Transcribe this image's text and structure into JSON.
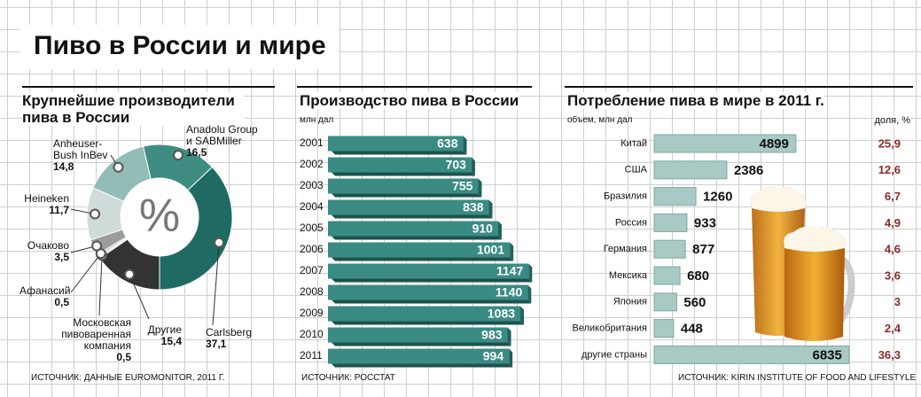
{
  "title": "Пиво в России и мире",
  "chart_data": [
    {
      "type": "donut",
      "title": "Крупнейшие производители пива в России",
      "center_label": "%",
      "categories": [
        "Другие",
        "Московская\nпивоваренная компания",
        "Афанасий",
        "Очаково",
        "Heineken",
        "Anheuser-\nBush InBev",
        "Anadolu Group\nи SABMiller",
        "Carlsberg"
      ],
      "values": [
        15.4,
        0.5,
        0.5,
        3.5,
        11.7,
        14.8,
        16.5,
        37.1
      ],
      "value_labels": [
        "15,4",
        "0,5",
        "0,5",
        "3,5",
        "11,7",
        "14,8",
        "16,5",
        "37,1"
      ],
      "colors": [
        "#333333",
        "#d9d9d9",
        "#bfbfbf",
        "#9c9c9c",
        "#cfdcda",
        "#93bcb7",
        "#3f8c83",
        "#1f6b63"
      ],
      "source": "ИСТОЧНИК: ДАННЫЕ EUROMONITOR, 2011 Г."
    },
    {
      "type": "bar",
      "title": "Производство пива в России",
      "unit": "млн дал",
      "categories": [
        "2001",
        "2002",
        "2003",
        "2004",
        "2005",
        "2006",
        "2007",
        "2008",
        "2009",
        "2010",
        "2011"
      ],
      "values": [
        638,
        703,
        755,
        838,
        910,
        1001,
        1147,
        1140,
        1083,
        983,
        994
      ],
      "color": "#3a8b84",
      "source": "ИСТОЧНИК: РОССТАТ"
    },
    {
      "type": "bar",
      "title": "Потребление пива в мире в 2011 г.",
      "unit": "объем, млн дал",
      "share_unit": "доля, %",
      "categories": [
        "Китай",
        "США",
        "Бразилия",
        "Россия",
        "Германия",
        "Мексика",
        "Япония",
        "Великобритания",
        "другие страны"
      ],
      "values": [
        4899,
        2386,
        1260,
        933,
        877,
        680,
        560,
        448,
        6835
      ],
      "shares": [
        25.9,
        12.6,
        6.7,
        4.9,
        4.6,
        3.6,
        3,
        2.4,
        36.3
      ],
      "share_labels": [
        "25,9",
        "12,6",
        "6,7",
        "4,9",
        "4,6",
        "3,6",
        "3",
        "2,4",
        "36,3"
      ],
      "color": "#a8c9c4",
      "share_color": "#8b2a2a",
      "source": "ИСТОЧНИК: KIRIN INSTITUTE OF FOOD AND LIFESTYLE"
    }
  ]
}
